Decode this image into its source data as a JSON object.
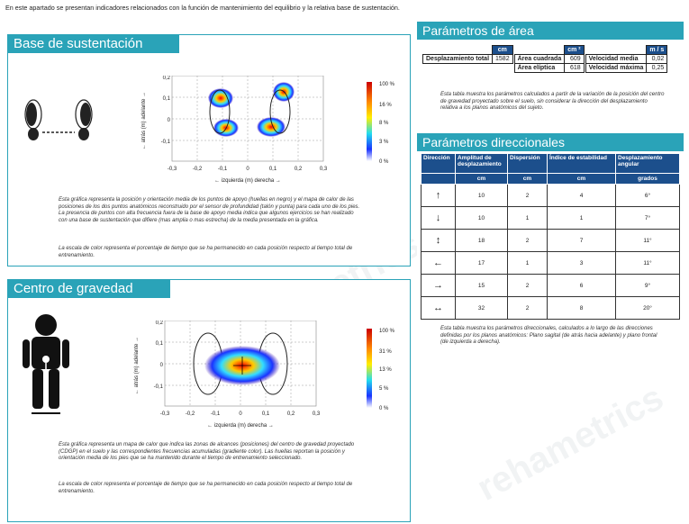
{
  "intro": "En este apartado se presentan indicadores relacionados con la función de mantenimiento del equilibrio y la relativa base de sustentación.",
  "watermark": "rehametrics",
  "base": {
    "title": "Base de sustentación",
    "y_label": "← atrás  (m)  adelante →",
    "x_label": "←  izquierda  (m)  derecha  →",
    "x_ticks": [
      "-0,3",
      "-0,2",
      "-0,1",
      "0",
      "0,1",
      "0,2",
      "0,3"
    ],
    "y_ticks": [
      "0,2",
      "0,1",
      "0",
      "-0,1"
    ],
    "scale": [
      "100 %",
      "16 %",
      "8 %",
      "3 %",
      "0 %"
    ],
    "caption1": "Esta gráfica representa la posición y orientación media de los puntos de apoyo (huellas en negro) y el mapa de calor de las posiciones de los dos puntos anatómicos reconstruido por el sensor de profundidad (talón y punta) para cada uno de los pies. La presencia de puntos con alta frecuencia fuera de la base de apoyo media indica que algunos ejercicios se han realizado con una base de sustentación que difiere (mas amplia o mas estrecha) de la media presentada en la gráfica.",
    "caption2": "La escala de color representa el porcentaje de tiempo que se ha permanecido en cada posición respecto al tiempo total de entrenamiento."
  },
  "cog": {
    "title": "Centro de gravedad",
    "y_label": "← atrás  (m)  adelante →",
    "x_label": "←  izquierda  (m)  derecha  →",
    "x_ticks": [
      "-0,3",
      "-0,2",
      "-0,1",
      "0",
      "0,1",
      "0,2",
      "0,3"
    ],
    "y_ticks": [
      "0,2",
      "0,1",
      "0",
      "-0,1"
    ],
    "scale": [
      "100 %",
      "31 %",
      "13 %",
      "5 %",
      "0 %"
    ],
    "caption1": "Esta gráfica representa un mapa de calor que indica las zonas de alcances (posiciones) del centro de gravedad proyectado (CDGP) en el suelo y las correspondientes frecuencias acumuladas (gradiente color). Las huellas reportan la posición y orientación media de los pies que se ha mantenido durante el tiempo de entrenamiento seleccionado.",
    "caption2": "La escala de color representa el porcentaje de tiempo que se ha permanecido en cada posición respecto al tiempo total de entrenamiento."
  },
  "area": {
    "title": "Parámetros de área",
    "units": [
      "cm",
      "cm ²",
      "m / s"
    ],
    "rows": [
      {
        "l1": "Desplazamiento total",
        "v1": "1582",
        "l2": "Área cuadrada",
        "v2": "609",
        "l3": "Velocidad media",
        "v3": "0,02"
      },
      {
        "l1": "",
        "v1": "",
        "l2": "Área elíptica",
        "v2": "618",
        "l3": "Velocidad máxima",
        "v3": "0,25"
      }
    ],
    "caption": "Esta tabla muestra los parámetros calculados a partir de la variación de la posición del centro de gravedad proyectado sobre el suelo, sin considerar la dirección del desplazamiento relativa a los planos anatómicos del sujeto."
  },
  "dir": {
    "title": "Parámetros direccionales",
    "headers": [
      "Dirección",
      "Amplitud de desplazamiento",
      "Dispersión",
      "Índice de estabilidad",
      "Desplazamiento angular"
    ],
    "units": [
      "",
      "cm",
      "cm",
      "cm",
      "grados"
    ],
    "rows": [
      {
        "arrow": "↑",
        "amp": "10",
        "disp": "2",
        "idx": "4",
        "ang": "6°"
      },
      {
        "arrow": "↓",
        "amp": "10",
        "disp": "1",
        "idx": "1",
        "ang": "7°"
      },
      {
        "arrow": "↕",
        "amp": "18",
        "disp": "2",
        "idx": "7",
        "ang": "11°"
      },
      {
        "arrow": "←",
        "amp": "17",
        "disp": "1",
        "idx": "3",
        "ang": "11°"
      },
      {
        "arrow": "→",
        "amp": "15",
        "disp": "2",
        "idx": "6",
        "ang": "9°"
      },
      {
        "arrow": "↔",
        "amp": "32",
        "disp": "2",
        "idx": "8",
        "ang": "20°"
      }
    ],
    "caption": "Esta tabla muestra los parámetros direccionales, calculados a lo largo de las direcciones definidas por los planos anatómicos: Plano sagital (de atrás hacia adelante) y plano frontal (de izquierda a derecha)."
  },
  "colors": {
    "accent": "#2aa3b8",
    "table_header": "#1c4f8c"
  }
}
